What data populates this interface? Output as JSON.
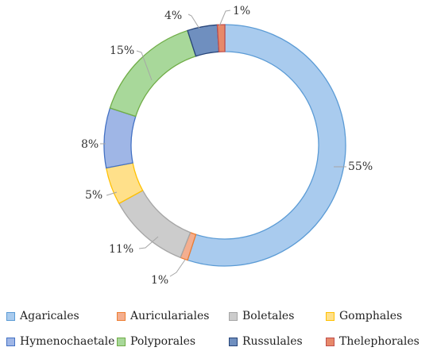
{
  "chart_data": {
    "type": "pie",
    "style": "donut",
    "title": "",
    "legend_position": "bottom",
    "categories": [
      "Agaricales",
      "Auriculariales",
      "Boletales",
      "Gomphales",
      "Hymenochaetale",
      "Polyporales",
      "Russulales",
      "Thelephorales"
    ],
    "values": [
      55,
      1,
      11,
      5,
      8,
      15,
      4,
      1
    ],
    "value_labels": [
      "55%",
      "1%",
      "11%",
      "5%",
      "8%",
      "15%",
      "4%",
      "1%"
    ],
    "fill_colors": [
      "#a9cbee",
      "#f4ae8f",
      "#cccccc",
      "#ffe08a",
      "#9fb6e6",
      "#a8d89a",
      "#6f8fbf",
      "#e7896a"
    ],
    "stroke_colors": [
      "#5b9bd5",
      "#ed7d31",
      "#a5a5a5",
      "#ffc000",
      "#4472c4",
      "#70ad47",
      "#264478",
      "#c0504d"
    ]
  }
}
